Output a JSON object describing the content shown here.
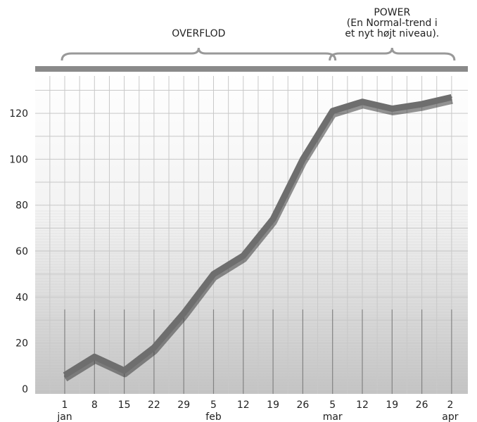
{
  "chart_data": {
    "type": "line",
    "title": "",
    "xlabel": "",
    "ylabel": "",
    "ylim": [
      0,
      130
    ],
    "yticks": [
      0,
      20,
      40,
      60,
      80,
      100,
      120
    ],
    "x_tick_labels": [
      {
        "day": "1",
        "month": "jan"
      },
      {
        "day": "8",
        "month": ""
      },
      {
        "day": "15",
        "month": ""
      },
      {
        "day": "22",
        "month": ""
      },
      {
        "day": "29",
        "month": ""
      },
      {
        "day": "5",
        "month": "feb"
      },
      {
        "day": "12",
        "month": ""
      },
      {
        "day": "19",
        "month": ""
      },
      {
        "day": "26",
        "month": ""
      },
      {
        "day": "5",
        "month": "mar"
      },
      {
        "day": "12",
        "month": ""
      },
      {
        "day": "19",
        "month": ""
      },
      {
        "day": "26",
        "month": ""
      },
      {
        "day": "2",
        "month": "apr"
      }
    ],
    "x": [
      "1 jan",
      "8 jan",
      "15 jan",
      "22 jan",
      "29 jan",
      "5 feb",
      "12 feb",
      "19 feb",
      "26 feb",
      "5 mar",
      "12 mar",
      "19 mar",
      "26 mar",
      "2 apr"
    ],
    "series": [
      {
        "values": [
          6,
          14,
          8,
          18,
          33,
          50,
          58,
          74,
          100,
          121,
          125,
          122,
          124,
          127
        ]
      }
    ],
    "grid": true,
    "legend": "none",
    "annotations": [
      {
        "text": [
          "OVERFLOD"
        ],
        "from": "1 jan",
        "to": "5 mar"
      },
      {
        "text": [
          "POWER",
          "(En Normal-trend i",
          "et nyt højt niveau)."
        ],
        "from": "5 mar",
        "to": "2 apr"
      }
    ],
    "colors": {
      "line": "#6e6e6e",
      "shadow": "#3a3a3a",
      "bar": "#8a8a8a",
      "grid": "#c8c8c8"
    }
  }
}
